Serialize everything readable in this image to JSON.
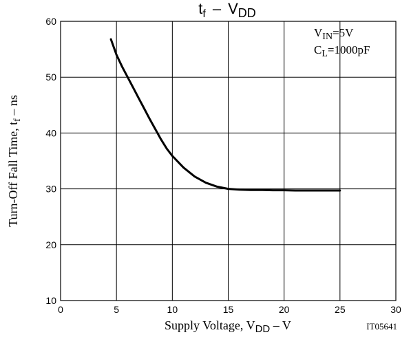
{
  "chart_data": {
    "type": "line",
    "title": {
      "main": "t",
      "sub1": "f",
      "dash": "–",
      "v": "V",
      "sub2": "DD"
    },
    "x": [
      4.5,
      5.0,
      5.5,
      6.0,
      6.5,
      7.0,
      7.5,
      8.0,
      8.5,
      9.0,
      9.5,
      10.0,
      11.0,
      12.0,
      13.0,
      14.0,
      15.0,
      16.0,
      17.0,
      18.0,
      19.0,
      20.0,
      21.0,
      22.0,
      23.0,
      24.0,
      25.0
    ],
    "series": [
      {
        "values": [
          56.8,
          54.0,
          51.9,
          50.0,
          48.1,
          46.2,
          44.3,
          42.4,
          40.6,
          38.8,
          37.2,
          35.9,
          33.8,
          32.2,
          31.1,
          30.4,
          30.0,
          29.85,
          29.8,
          29.8,
          29.75,
          29.75,
          29.7,
          29.7,
          29.7,
          29.7,
          29.7
        ]
      }
    ],
    "xlim": [
      0,
      30
    ],
    "ylim": [
      10,
      60
    ],
    "x_ticks": [
      "0",
      "5",
      "10",
      "15",
      "20",
      "25",
      "30"
    ],
    "y_ticks": [
      "10",
      "20",
      "30",
      "40",
      "50",
      "60"
    ],
    "grid": true,
    "xlabel": {
      "text": "Supply Voltage, V",
      "sub": "DD",
      "suffix": " – V"
    },
    "ylabel": {
      "text": "Turn-Off Fall Time, t",
      "sub": "f",
      "suffix": " – ns"
    },
    "annotations": {
      "vin_main": "V",
      "vin_sub": "IN",
      "vin_value": "=5V",
      "cl_main": "C",
      "cl_sub": "L",
      "cl_value": "=1000pF"
    },
    "figure_id": "IT05641"
  }
}
